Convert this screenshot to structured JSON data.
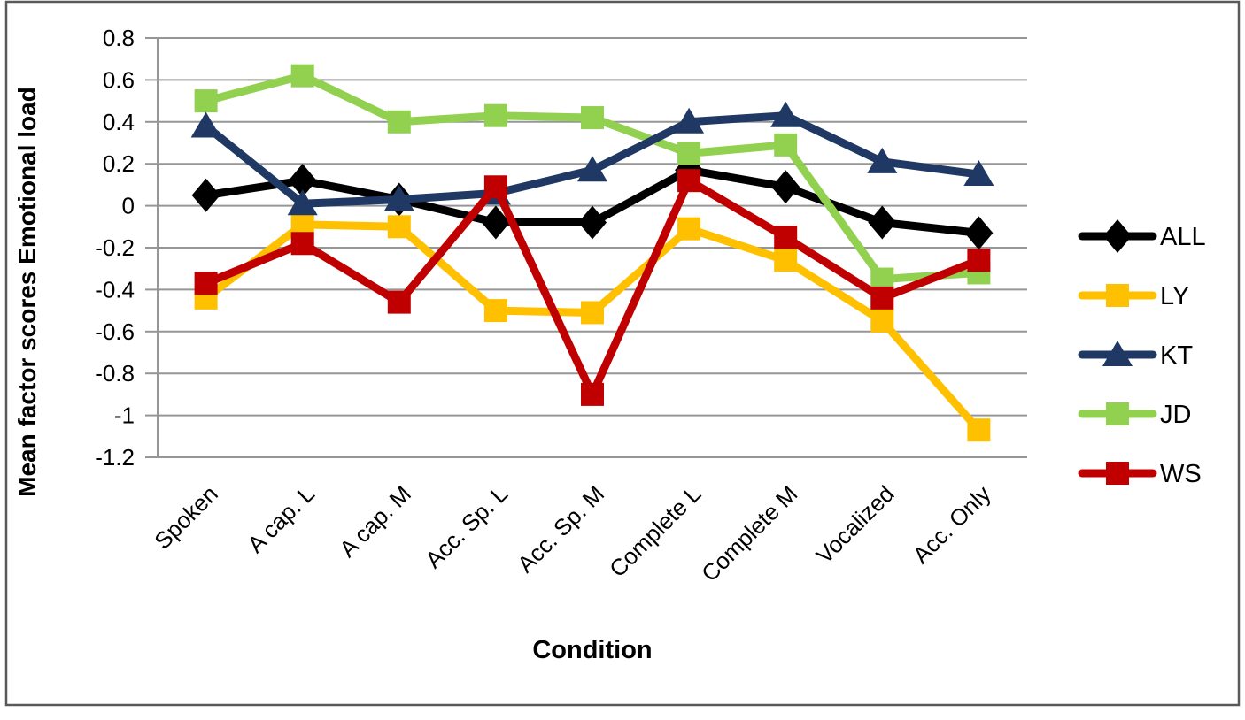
{
  "figure": {
    "background": "#ffffff",
    "border_color": "#595959",
    "gridline_color": "#969696"
  },
  "chart_data": {
    "type": "line",
    "title": "",
    "xlabel": "Condition",
    "ylabel": "Mean factor scores Emotional load",
    "ylim": [
      -1.2,
      0.8
    ],
    "ytick_step": 0.2,
    "ytick_labels": [
      "0.8",
      "0.6",
      "0.4",
      "0.2",
      "0",
      "-0.2",
      "-0.4",
      "-0.6",
      "-0.8",
      "-1",
      "-1.2"
    ],
    "grid": true,
    "legend_position": "right",
    "categories": [
      "Spoken",
      "A cap. L",
      "A cap. M",
      "Acc. Sp. L",
      "Acc. Sp. M",
      "Complete L",
      "Complete M",
      "Vocalized",
      "Acc. Only"
    ],
    "series": [
      {
        "name": "ALL",
        "marker": "diamond",
        "color": "#000000",
        "values": [
          0.05,
          0.12,
          0.03,
          -0.08,
          -0.08,
          0.17,
          0.09,
          -0.08,
          -0.13
        ]
      },
      {
        "name": "LY",
        "marker": "square",
        "color": "#FFC000",
        "values": [
          -0.44,
          -0.09,
          -0.1,
          -0.5,
          -0.51,
          -0.11,
          -0.26,
          -0.55,
          -1.07
        ]
      },
      {
        "name": "KT",
        "marker": "triangle",
        "color": "#1F3864",
        "values": [
          0.38,
          0.01,
          0.03,
          0.06,
          0.17,
          0.4,
          0.43,
          0.21,
          0.15
        ]
      },
      {
        "name": "JD",
        "marker": "square",
        "color": "#92D050",
        "values": [
          0.5,
          0.62,
          0.4,
          0.43,
          0.42,
          0.25,
          0.29,
          -0.35,
          -0.32
        ]
      },
      {
        "name": "WS",
        "marker": "square",
        "color": "#C00000",
        "values": [
          -0.37,
          -0.18,
          -0.46,
          0.09,
          -0.9,
          0.12,
          -0.15,
          -0.44,
          -0.26
        ]
      }
    ]
  }
}
